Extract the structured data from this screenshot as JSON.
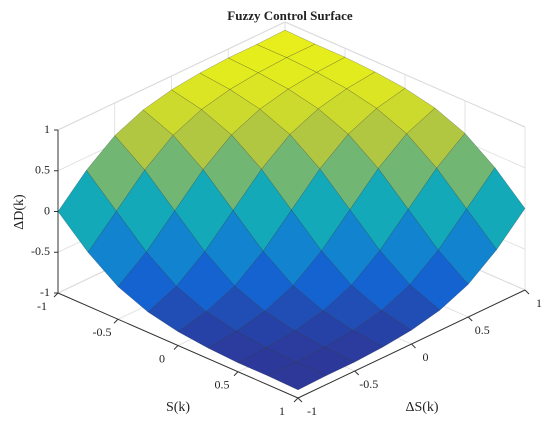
{
  "chart_data": {
    "type": "surface",
    "title": "Fuzzy Control Surface",
    "x_label": "S(k)",
    "y_label": "ΔS(k)",
    "z_label": "ΔD(k)",
    "x": [
      -1,
      -0.75,
      -0.5,
      -0.25,
      0,
      0.25,
      0.5,
      0.75,
      1
    ],
    "y": [
      -1,
      -0.75,
      -0.5,
      -0.25,
      0,
      0.25,
      0.5,
      0.75,
      1
    ],
    "z": [
      [
        0,
        0.34,
        0.6,
        0.75,
        0.83,
        0.87,
        0.89,
        0.89,
        0.9
      ],
      [
        -0.34,
        0,
        0.34,
        0.6,
        0.75,
        0.83,
        0.87,
        0.89,
        0.89
      ],
      [
        -0.6,
        -0.34,
        0,
        0.34,
        0.6,
        0.75,
        0.83,
        0.87,
        0.89
      ],
      [
        -0.75,
        -0.6,
        -0.34,
        0,
        0.34,
        0.6,
        0.75,
        0.83,
        0.87
      ],
      [
        -0.83,
        -0.75,
        -0.6,
        -0.34,
        0,
        0.34,
        0.6,
        0.75,
        0.83
      ],
      [
        -0.87,
        -0.83,
        -0.75,
        -0.6,
        -0.34,
        0,
        0.34,
        0.6,
        0.75
      ],
      [
        -0.89,
        -0.87,
        -0.83,
        -0.75,
        -0.6,
        -0.34,
        0,
        0.34,
        0.6
      ],
      [
        -0.89,
        -0.89,
        -0.87,
        -0.83,
        -0.75,
        -0.6,
        -0.34,
        0,
        0.34
      ],
      [
        -0.9,
        -0.89,
        -0.89,
        -0.87,
        -0.83,
        -0.75,
        -0.6,
        -0.34,
        0
      ]
    ],
    "xlim": [
      -1,
      1
    ],
    "ylim": [
      -1,
      1
    ],
    "zlim": [
      -1,
      1
    ],
    "xticks": [
      -1,
      -0.5,
      0,
      0.5,
      1
    ],
    "yticks": [
      -1,
      -0.5,
      0,
      0.5,
      1
    ],
    "zticks": [
      -1,
      -0.5,
      0,
      0.5,
      1
    ],
    "grid": true,
    "colormap": [
      "#352a87",
      "#0f6ddc",
      "#14a9b8",
      "#a5be4a",
      "#f9fb0e"
    ]
  }
}
